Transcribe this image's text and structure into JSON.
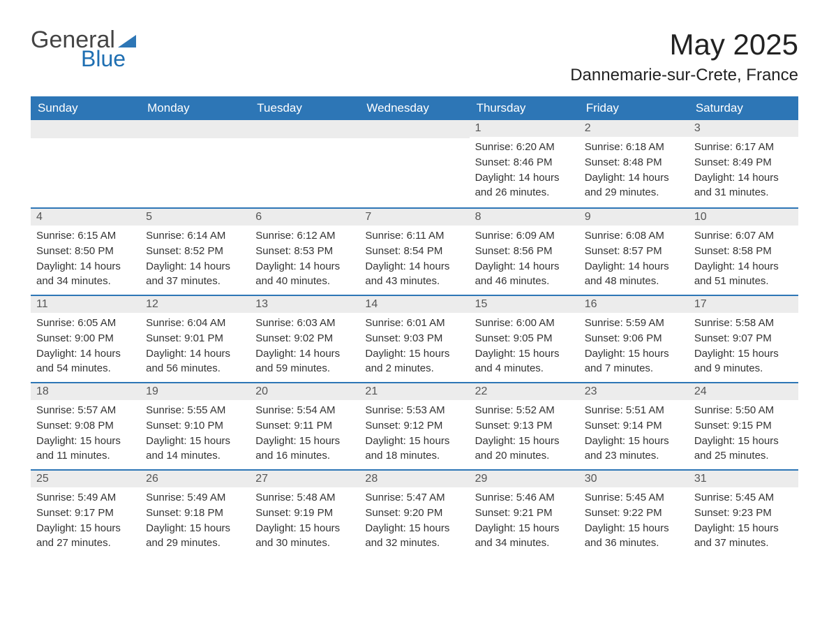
{
  "logo": {
    "text1": "General",
    "text2": "Blue",
    "triangle_color": "#2d76b6"
  },
  "title": "May 2025",
  "location": "Dannemarie-sur-Crete, France",
  "colors": {
    "header_bg": "#2d76b6",
    "header_text": "#ffffff",
    "daynum_bg": "#ececec",
    "row_border": "#2d76b6",
    "body_text": "#333333"
  },
  "weekdays": [
    "Sunday",
    "Monday",
    "Tuesday",
    "Wednesday",
    "Thursday",
    "Friday",
    "Saturday"
  ],
  "weeks": [
    [
      null,
      null,
      null,
      null,
      {
        "n": "1",
        "sunrise": "6:20 AM",
        "sunset": "8:46 PM",
        "daylight": "14 hours and 26 minutes."
      },
      {
        "n": "2",
        "sunrise": "6:18 AM",
        "sunset": "8:48 PM",
        "daylight": "14 hours and 29 minutes."
      },
      {
        "n": "3",
        "sunrise": "6:17 AM",
        "sunset": "8:49 PM",
        "daylight": "14 hours and 31 minutes."
      }
    ],
    [
      {
        "n": "4",
        "sunrise": "6:15 AM",
        "sunset": "8:50 PM",
        "daylight": "14 hours and 34 minutes."
      },
      {
        "n": "5",
        "sunrise": "6:14 AM",
        "sunset": "8:52 PM",
        "daylight": "14 hours and 37 minutes."
      },
      {
        "n": "6",
        "sunrise": "6:12 AM",
        "sunset": "8:53 PM",
        "daylight": "14 hours and 40 minutes."
      },
      {
        "n": "7",
        "sunrise": "6:11 AM",
        "sunset": "8:54 PM",
        "daylight": "14 hours and 43 minutes."
      },
      {
        "n": "8",
        "sunrise": "6:09 AM",
        "sunset": "8:56 PM",
        "daylight": "14 hours and 46 minutes."
      },
      {
        "n": "9",
        "sunrise": "6:08 AM",
        "sunset": "8:57 PM",
        "daylight": "14 hours and 48 minutes."
      },
      {
        "n": "10",
        "sunrise": "6:07 AM",
        "sunset": "8:58 PM",
        "daylight": "14 hours and 51 minutes."
      }
    ],
    [
      {
        "n": "11",
        "sunrise": "6:05 AM",
        "sunset": "9:00 PM",
        "daylight": "14 hours and 54 minutes."
      },
      {
        "n": "12",
        "sunrise": "6:04 AM",
        "sunset": "9:01 PM",
        "daylight": "14 hours and 56 minutes."
      },
      {
        "n": "13",
        "sunrise": "6:03 AM",
        "sunset": "9:02 PM",
        "daylight": "14 hours and 59 minutes."
      },
      {
        "n": "14",
        "sunrise": "6:01 AM",
        "sunset": "9:03 PM",
        "daylight": "15 hours and 2 minutes."
      },
      {
        "n": "15",
        "sunrise": "6:00 AM",
        "sunset": "9:05 PM",
        "daylight": "15 hours and 4 minutes."
      },
      {
        "n": "16",
        "sunrise": "5:59 AM",
        "sunset": "9:06 PM",
        "daylight": "15 hours and 7 minutes."
      },
      {
        "n": "17",
        "sunrise": "5:58 AM",
        "sunset": "9:07 PM",
        "daylight": "15 hours and 9 minutes."
      }
    ],
    [
      {
        "n": "18",
        "sunrise": "5:57 AM",
        "sunset": "9:08 PM",
        "daylight": "15 hours and 11 minutes."
      },
      {
        "n": "19",
        "sunrise": "5:55 AM",
        "sunset": "9:10 PM",
        "daylight": "15 hours and 14 minutes."
      },
      {
        "n": "20",
        "sunrise": "5:54 AM",
        "sunset": "9:11 PM",
        "daylight": "15 hours and 16 minutes."
      },
      {
        "n": "21",
        "sunrise": "5:53 AM",
        "sunset": "9:12 PM",
        "daylight": "15 hours and 18 minutes."
      },
      {
        "n": "22",
        "sunrise": "5:52 AM",
        "sunset": "9:13 PM",
        "daylight": "15 hours and 20 minutes."
      },
      {
        "n": "23",
        "sunrise": "5:51 AM",
        "sunset": "9:14 PM",
        "daylight": "15 hours and 23 minutes."
      },
      {
        "n": "24",
        "sunrise": "5:50 AM",
        "sunset": "9:15 PM",
        "daylight": "15 hours and 25 minutes."
      }
    ],
    [
      {
        "n": "25",
        "sunrise": "5:49 AM",
        "sunset": "9:17 PM",
        "daylight": "15 hours and 27 minutes."
      },
      {
        "n": "26",
        "sunrise": "5:49 AM",
        "sunset": "9:18 PM",
        "daylight": "15 hours and 29 minutes."
      },
      {
        "n": "27",
        "sunrise": "5:48 AM",
        "sunset": "9:19 PM",
        "daylight": "15 hours and 30 minutes."
      },
      {
        "n": "28",
        "sunrise": "5:47 AM",
        "sunset": "9:20 PM",
        "daylight": "15 hours and 32 minutes."
      },
      {
        "n": "29",
        "sunrise": "5:46 AM",
        "sunset": "9:21 PM",
        "daylight": "15 hours and 34 minutes."
      },
      {
        "n": "30",
        "sunrise": "5:45 AM",
        "sunset": "9:22 PM",
        "daylight": "15 hours and 36 minutes."
      },
      {
        "n": "31",
        "sunrise": "5:45 AM",
        "sunset": "9:23 PM",
        "daylight": "15 hours and 37 minutes."
      }
    ]
  ],
  "labels": {
    "sunrise": "Sunrise:",
    "sunset": "Sunset:",
    "daylight": "Daylight:"
  }
}
